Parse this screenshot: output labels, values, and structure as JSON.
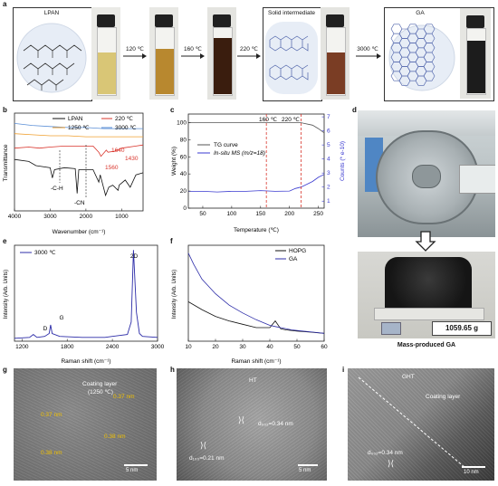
{
  "panel_labels": {
    "a": "a",
    "b": "b",
    "c": "c",
    "d": "d",
    "e": "e",
    "f": "f",
    "g": "g",
    "h": "h",
    "i": "i"
  },
  "panel_a": {
    "box1_title": "LPAN",
    "box2_title": "Solid intermediate",
    "box3_title": "GA",
    "arrows": [
      "120 ℃",
      "160 ℃",
      "220 ℃",
      "3000 ℃"
    ],
    "vial_colors": [
      "#d9c676",
      "#b8882f",
      "#3a1d0e",
      "#7a3d24",
      "#1c1c1c"
    ]
  },
  "panel_b": {
    "ylabel": "Transmittance",
    "xlabel": "Wavenumber (cm⁻¹)",
    "xticks": [
      "4000",
      "3000",
      "2000",
      "1000"
    ],
    "legend": [
      "LPAN",
      "220 ℃",
      "1250 ℃",
      "3000 ℃"
    ],
    "annotations": [
      "1640",
      "1430",
      "1560",
      "-C-H",
      "-CN"
    ],
    "colors": {
      "LPAN": "#111111",
      "220": "#d9342b",
      "1250": "#f0a030",
      "3000": "#5b8fd6"
    }
  },
  "panel_c": {
    "ylabel_left": "Weight (%)",
    "ylabel_right": "Counts (* e-10)",
    "xlabel": "Temperature (℃)",
    "xticks": [
      "50",
      "100",
      "150",
      "200",
      "250"
    ],
    "yticks_left": [
      "0",
      "20",
      "40",
      "60",
      "80",
      "100"
    ],
    "yticks_right": [
      "1",
      "2",
      "3",
      "4",
      "5",
      "6",
      "7"
    ],
    "markers": [
      "160 ℃",
      "220 ℃"
    ],
    "legend": [
      "TG curve",
      "In-situ MS (m/z=18)"
    ],
    "colors": {
      "tg": "#555555",
      "ms": "#3a3ad0",
      "marker": "#d9342b"
    }
  },
  "panel_d": {
    "photo_label": "1059.65 g",
    "caption": "Mass-produced GA"
  },
  "panel_e": {
    "ylabel": "Intensity (Arb. Units)",
    "xlabel": "Raman shift (cm⁻¹)",
    "xticks": [
      "1200",
      "1800",
      "2400",
      "3000"
    ],
    "legend": "3000 ℃",
    "peaks": [
      "D",
      "G",
      "2D"
    ],
    "color": "#2c2ca8"
  },
  "panel_f": {
    "ylabel": "Intensity (Arb. Units)",
    "xlabel": "Raman shift (cm⁻¹)",
    "xticks": [
      "10",
      "20",
      "30",
      "40",
      "50",
      "60"
    ],
    "legend": [
      "HOPG",
      "GA"
    ],
    "colors": {
      "HOPG": "#111111",
      "GA": "#2c2ca8"
    }
  },
  "panel_g": {
    "title": "Coating layer",
    "subtitle": "(1250 ℃)",
    "measurements": [
      "0.37 nm",
      "0.37 nm",
      "0.38 nm",
      "0.38 nm"
    ],
    "scale": "5 nm"
  },
  "panel_h": {
    "title": "HT",
    "d002": "d₀₀₂=0.34 nm",
    "d100": "d₁₀₀=0.21 nm",
    "scale": "5 nm"
  },
  "panel_i": {
    "title": "GHT",
    "coating": "Coating layer",
    "d002": "d₀₀₂=0.34 nm",
    "scale": "10 nm"
  },
  "chart_data": [
    {
      "type": "line",
      "panel": "b",
      "xlabel": "Wavenumber (cm⁻¹)",
      "ylabel": "Transmittance",
      "xlim": [
        4000,
        400
      ],
      "series": [
        {
          "name": "LPAN",
          "x": [
            4000,
            3600,
            3400,
            3000,
            2940,
            2880,
            2600,
            2300,
            2245,
            2200,
            1800,
            1640,
            1600,
            1450,
            1360,
            1250,
            1100,
            1070,
            900,
            760,
            600,
            400
          ],
          "y": [
            0.55,
            0.53,
            0.49,
            0.47,
            0.37,
            0.45,
            0.47,
            0.46,
            0.22,
            0.45,
            0.45,
            0.33,
            0.4,
            0.2,
            0.28,
            0.3,
            0.25,
            0.3,
            0.35,
            0.28,
            0.4,
            0.42
          ]
        },
        {
          "name": "220 ℃",
          "x": [
            4000,
            3600,
            3300,
            3000,
            2600,
            2200,
            1800,
            1640,
            1580,
            1430,
            1380,
            1200,
            1000,
            600,
            400
          ],
          "y": [
            0.66,
            0.67,
            0.66,
            0.67,
            0.68,
            0.68,
            0.68,
            0.62,
            0.58,
            0.64,
            0.62,
            0.63,
            0.66,
            0.68,
            0.69
          ]
        },
        {
          "name": "1250 ℃",
          "x": [
            4000,
            3500,
            3000,
            2500,
            2000,
            1500,
            1000,
            400
          ],
          "y": [
            0.8,
            0.79,
            0.78,
            0.78,
            0.77,
            0.77,
            0.77,
            0.77
          ]
        },
        {
          "name": "3000 ℃",
          "x": [
            4000,
            3500,
            3000,
            2500,
            2000,
            1500,
            1000,
            400
          ],
          "y": [
            0.9,
            0.88,
            0.87,
            0.86,
            0.86,
            0.85,
            0.85,
            0.85
          ]
        }
      ]
    },
    {
      "type": "line",
      "panel": "c",
      "xlabel": "Temperature (℃)",
      "ylabel": "Weight (%)",
      "xlim": [
        25,
        260
      ],
      "ylim": [
        0,
        110
      ],
      "series": [
        {
          "name": "TG curve",
          "x": [
            25,
            50,
            100,
            150,
            200,
            220,
            240,
            250,
            260
          ],
          "y": [
            100,
            100,
            100,
            100,
            100,
            99.8,
            97,
            93,
            88
          ]
        },
        {
          "name": "In-situ MS (m/z=18)",
          "x": [
            25,
            50,
            75,
            100,
            125,
            150,
            175,
            200,
            210,
            220,
            230,
            240,
            250,
            260
          ],
          "y": [
            1.7,
            1.7,
            1.65,
            1.7,
            1.7,
            1.75,
            1.7,
            1.72,
            1.9,
            2.0,
            2.2,
            2.4,
            2.7,
            2.9
          ]
        }
      ],
      "markers_x": [
        160,
        220
      ]
    },
    {
      "type": "line",
      "panel": "e",
      "xlabel": "Raman shift (cm⁻¹)",
      "ylabel": "Intensity (Arb. Units)",
      "xlim": [
        1100,
        3000
      ],
      "series": [
        {
          "name": "3000 ℃",
          "x": [
            1100,
            1300,
            1350,
            1400,
            1500,
            1560,
            1580,
            1600,
            1700,
            2000,
            2300,
            2400,
            2600,
            2650,
            2680,
            2720,
            2760,
            2800,
            3000
          ],
          "y": [
            0.03,
            0.04,
            0.07,
            0.04,
            0.05,
            0.08,
            0.17,
            0.08,
            0.05,
            0.04,
            0.04,
            0.05,
            0.07,
            0.2,
            0.95,
            0.3,
            0.08,
            0.05,
            0.04
          ]
        }
      ]
    },
    {
      "type": "line",
      "panel": "f",
      "xlabel": "Raman shift (cm⁻¹)",
      "ylabel": "Intensity (Arb. Units)",
      "xlim": [
        10,
        60
      ],
      "series": [
        {
          "name": "HOPG",
          "x": [
            10,
            15,
            20,
            25,
            30,
            35,
            40,
            42,
            44,
            46,
            50,
            55,
            60
          ],
          "y": [
            0.45,
            0.38,
            0.32,
            0.28,
            0.25,
            0.22,
            0.22,
            0.28,
            0.21,
            0.2,
            0.19,
            0.18,
            0.17
          ]
        },
        {
          "name": "GA",
          "x": [
            10,
            12,
            15,
            20,
            25,
            30,
            35,
            40,
            42,
            44,
            48,
            52,
            56,
            60
          ],
          "y": [
            0.88,
            0.78,
            0.65,
            0.52,
            0.42,
            0.35,
            0.29,
            0.24,
            0.23,
            0.22,
            0.2,
            0.19,
            0.18,
            0.17
          ]
        }
      ]
    }
  ]
}
